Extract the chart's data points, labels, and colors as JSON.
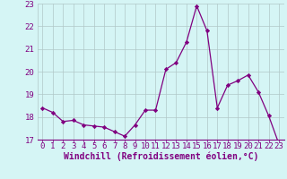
{
  "x": [
    0,
    1,
    2,
    3,
    4,
    5,
    6,
    7,
    8,
    9,
    10,
    11,
    12,
    13,
    14,
    15,
    16,
    17,
    18,
    19,
    20,
    21,
    22,
    23
  ],
  "y": [
    18.4,
    18.2,
    17.8,
    17.85,
    17.65,
    17.6,
    17.55,
    17.35,
    17.15,
    17.65,
    18.3,
    18.3,
    20.1,
    20.4,
    21.3,
    22.9,
    21.8,
    18.4,
    19.4,
    19.6,
    19.85,
    19.1,
    18.05,
    16.8
  ],
  "line_color": "#800080",
  "marker": "D",
  "marker_size": 2.2,
  "bg_color": "#d5f5f5",
  "grid_color": "#b0c8c8",
  "xlabel": "Windchill (Refroidissement éolien,°C)",
  "xlabel_fontsize": 7,
  "tick_fontsize": 6.5,
  "ylim": [
    17.0,
    23.0
  ],
  "xlim": [
    -0.5,
    23.5
  ],
  "yticks": [
    17,
    18,
    19,
    20,
    21,
    22,
    23
  ],
  "xticks": [
    0,
    1,
    2,
    3,
    4,
    5,
    6,
    7,
    8,
    9,
    10,
    11,
    12,
    13,
    14,
    15,
    16,
    17,
    18,
    19,
    20,
    21,
    22,
    23
  ]
}
